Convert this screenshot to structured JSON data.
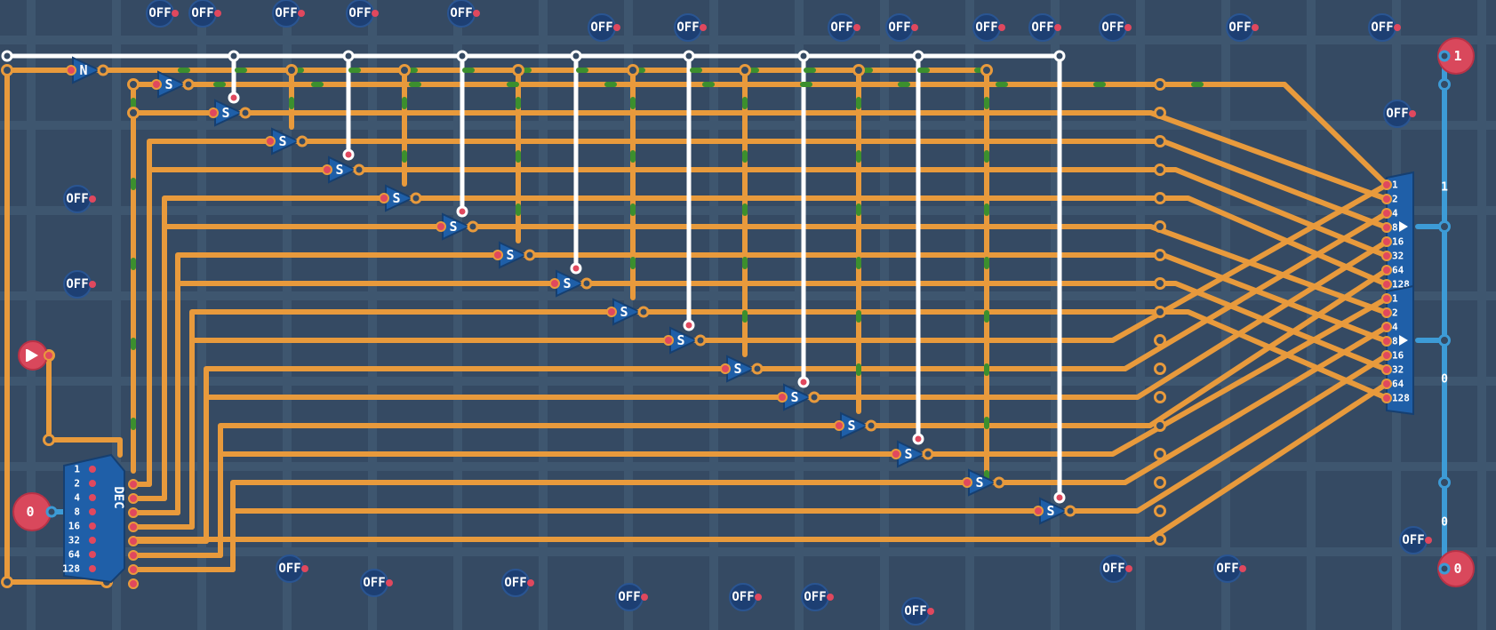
{
  "colors": {
    "background": "#354a63",
    "grid": "#3e566f",
    "wire_orange": "#e89a3c",
    "wire_white": "#ffffff",
    "wire_blue": "#3d9bd6",
    "flow_green": "#3c8f2e",
    "gate_blue": "#1f5fa8",
    "pin_red": "#e0485e",
    "io_red": "#d9485c",
    "switch_dark": "#1d3f73"
  },
  "switch_label": "OFF",
  "not_gate_label": "N",
  "select_gate_label": "S",
  "decoder": {
    "label": "DEC",
    "bit_labels": [
      "1",
      "2",
      "4",
      "8",
      "16",
      "32",
      "64",
      "128"
    ]
  },
  "combiners": [
    {
      "bit_labels": [
        "1",
        "2",
        "4",
        "8",
        "16",
        "32",
        "64",
        "128"
      ]
    },
    {
      "bit_labels": [
        "1",
        "2",
        "4",
        "8",
        "16",
        "32",
        "64",
        "128"
      ]
    }
  ],
  "input_value": "0",
  "clock_icon": "play-icon",
  "outputs": [
    {
      "value": "1"
    },
    {
      "value": "0"
    }
  ],
  "wire_labels": [
    "1",
    "0",
    "0"
  ]
}
